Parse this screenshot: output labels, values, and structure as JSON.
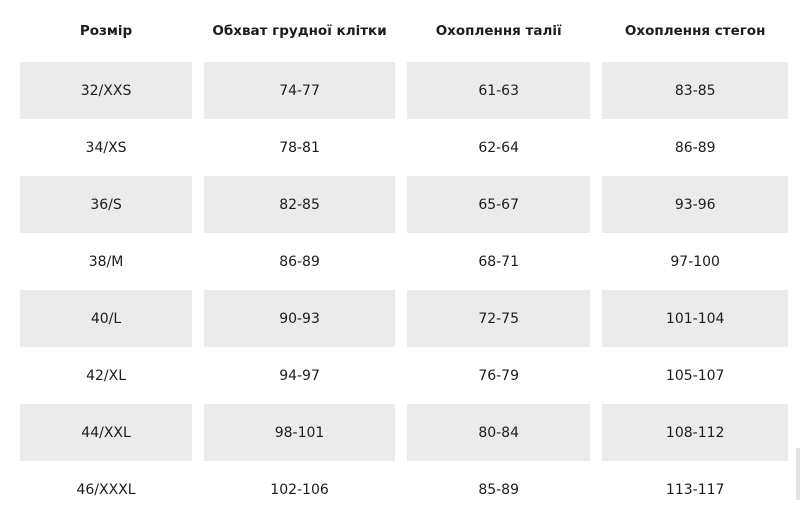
{
  "table": {
    "headers": [
      "Розмір",
      "Обхват грудної клітки",
      "Охоплення талії",
      "Охоплення стегон"
    ],
    "rows": [
      [
        "32/XXS",
        "74-77",
        "61-63",
        "83-85"
      ],
      [
        "34/XS",
        "78-81",
        "62-64",
        "86-89"
      ],
      [
        "36/S",
        "82-85",
        "65-67",
        "93-96"
      ],
      [
        "38/M",
        "86-89",
        "68-71",
        "97-100"
      ],
      [
        "40/L",
        "90-93",
        "72-75",
        "101-104"
      ],
      [
        "42/XL",
        "94-97",
        "76-79",
        "105-107"
      ],
      [
        "44/XXL",
        "98-101",
        "80-84",
        "108-112"
      ],
      [
        "46/XXXL",
        "102-106",
        "85-89",
        "113-117"
      ]
    ]
  },
  "colors": {
    "stripe": "#ebebeb",
    "text": "#1c1c1c",
    "background": "#ffffff"
  }
}
